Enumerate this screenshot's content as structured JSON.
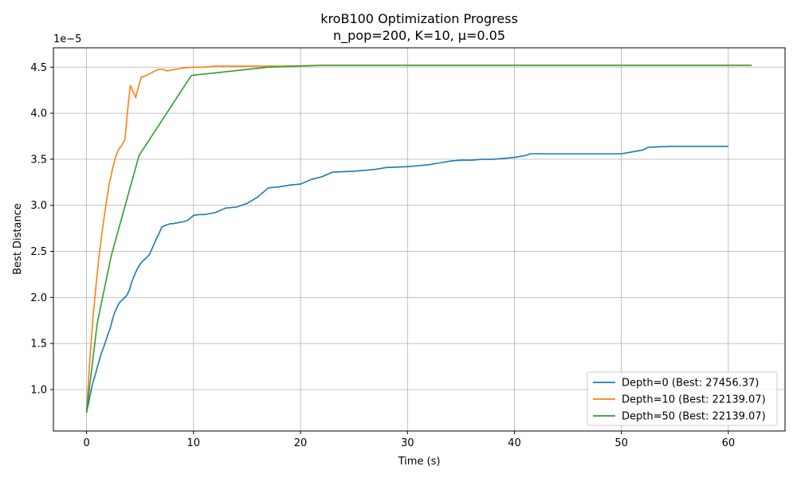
{
  "chart_data": {
    "type": "line",
    "title": "kroB100 Optimization Progress",
    "subtitle": "n_pop=200, K=10, μ=0.05",
    "xlabel": "Time (s)",
    "ylabel": "Best Distance",
    "y_offset_label": "1e−5",
    "xlim": [
      -3.1,
      65.3
    ],
    "ylim": [
      0.55,
      4.71
    ],
    "x_ticks": [
      0,
      10,
      20,
      30,
      40,
      50,
      60
    ],
    "x_tick_labels": [
      "0",
      "10",
      "20",
      "30",
      "40",
      "50",
      "60"
    ],
    "y_ticks": [
      1.0,
      1.5,
      2.0,
      2.5,
      3.0,
      3.5,
      4.0,
      4.5
    ],
    "y_tick_labels": [
      "1.0",
      "1.5",
      "2.0",
      "2.5",
      "3.0",
      "3.5",
      "4.0",
      "4.5"
    ],
    "grid": true,
    "legend_position": "lower-right",
    "series": [
      {
        "name": "Depth=0 (Best: 27456.37)",
        "color": "#1f77b4",
        "x": [
          0.0,
          0.2,
          0.4,
          0.6,
          0.8,
          1.0,
          1.2,
          1.4,
          1.6,
          1.8,
          2.0,
          2.2,
          2.4,
          2.6,
          2.8,
          3.0,
          3.2,
          3.5,
          3.8,
          4.0,
          4.2,
          4.4,
          4.7,
          5.0,
          5.3,
          5.6,
          5.9,
          6.2,
          6.5,
          6.8,
          7.0,
          7.3,
          7.6,
          7.8,
          8.0,
          8.5,
          9.0,
          9.5,
          10.0,
          10.5,
          11.0,
          11.5,
          12.0,
          13.0,
          14.0,
          15.0,
          16.0,
          17.0,
          18.0,
          19.0,
          20.0,
          21.0,
          22.0,
          23.0,
          25.0,
          26.0,
          27.0,
          28.0,
          30.0,
          31.0,
          32.0,
          33.0,
          34.0,
          35.0,
          36.0,
          37.0,
          38.0,
          39.0,
          40.0,
          41.0,
          41.5,
          45.0,
          50.0,
          51.0,
          52.0,
          52.5,
          54.5,
          60.0
        ],
        "y": [
          0.75,
          0.86,
          0.98,
          1.08,
          1.15,
          1.24,
          1.32,
          1.4,
          1.46,
          1.53,
          1.6,
          1.66,
          1.75,
          1.83,
          1.88,
          1.93,
          1.96,
          1.99,
          2.03,
          2.08,
          2.16,
          2.22,
          2.3,
          2.36,
          2.4,
          2.43,
          2.47,
          2.55,
          2.63,
          2.7,
          2.76,
          2.78,
          2.79,
          2.8,
          2.8,
          2.81,
          2.82,
          2.84,
          2.89,
          2.9,
          2.9,
          2.91,
          2.92,
          2.97,
          2.98,
          3.02,
          3.09,
          3.19,
          3.2,
          3.22,
          3.23,
          3.28,
          3.31,
          3.36,
          3.37,
          3.38,
          3.39,
          3.41,
          3.42,
          3.43,
          3.44,
          3.46,
          3.48,
          3.49,
          3.49,
          3.5,
          3.5,
          3.51,
          3.52,
          3.54,
          3.56,
          3.56,
          3.56,
          3.58,
          3.6,
          3.63,
          3.64,
          3.64
        ]
      },
      {
        "name": "Depth=10 (Best: 22139.07)",
        "color": "#ff7f0e",
        "x": [
          0.0,
          0.3,
          0.6,
          0.9,
          1.2,
          1.5,
          1.8,
          2.1,
          2.4,
          2.7,
          3.0,
          3.3,
          3.6,
          3.9,
          4.1,
          4.6,
          5.1,
          5.6,
          6.1,
          6.6,
          7.0,
          7.5,
          8.0,
          9.0,
          10.0,
          11.0,
          12.0,
          14.0,
          16.0,
          18.0,
          20.0,
          22.0,
          62.0
        ],
        "y": [
          0.76,
          1.3,
          1.78,
          2.15,
          2.48,
          2.75,
          3.0,
          3.22,
          3.38,
          3.52,
          3.61,
          3.65,
          3.72,
          4.1,
          4.3,
          4.17,
          4.39,
          4.41,
          4.44,
          4.47,
          4.48,
          4.46,
          4.47,
          4.49,
          4.5,
          4.5,
          4.51,
          4.51,
          4.51,
          4.51,
          4.515,
          4.52,
          4.52
        ]
      },
      {
        "name": "Depth=50 (Best: 22139.07)",
        "color": "#2ca02c",
        "x": [
          0.0,
          1.0,
          2.3,
          4.9,
          9.8,
          17.0,
          22.0,
          62.2
        ],
        "y": [
          0.76,
          1.72,
          2.45,
          3.54,
          4.41,
          4.5,
          4.52,
          4.52
        ]
      }
    ]
  }
}
